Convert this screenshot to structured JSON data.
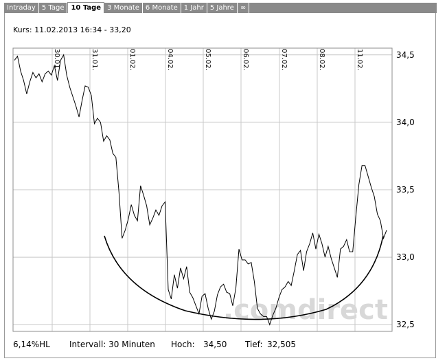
{
  "tabs": [
    {
      "label": "Intraday",
      "active": false
    },
    {
      "label": "5 Tage",
      "active": false
    },
    {
      "label": "10 Tage",
      "active": true
    },
    {
      "label": "3 Monate",
      "active": false
    },
    {
      "label": "6 Monate",
      "active": false
    },
    {
      "label": "1 Jahr",
      "active": false
    },
    {
      "label": "5 Jahre",
      "active": false
    },
    {
      "label": "∞",
      "active": false
    }
  ],
  "quote": {
    "text": "Kurs: 11.02.2013 16:34 - 33,20"
  },
  "footer": {
    "hl": "6,14%HL",
    "interval": "Intervall: 30 Minuten",
    "high_label": "Hoch:",
    "high_value": "34,50",
    "low_label": "Tief:",
    "low_value": "32,505"
  },
  "watermark": ".comdirect",
  "colors": {
    "line": "#000000",
    "grid": "#c8c8c8",
    "watermark": "#d8d8d8",
    "tabbar": "#8a8a8a"
  },
  "chart_data": {
    "type": "line",
    "title": "",
    "xlabel": "",
    "ylabel": "",
    "ylim": [
      32.45,
      34.55
    ],
    "y_ticks": [
      "34,5",
      "34,0",
      "33,5",
      "33,0",
      "32,5"
    ],
    "y_tick_values": [
      34.5,
      34.0,
      33.5,
      33.0,
      32.5
    ],
    "day_labels": [
      "30.01.",
      "31.01.",
      "01.02.",
      "04.02.",
      "05.02.",
      "06.02.",
      "07.02.",
      "08.02.",
      "11.02."
    ],
    "grid": true,
    "series": [
      {
        "values": [
          34.46,
          34.49,
          34.38,
          34.31,
          34.21,
          34.3,
          34.37,
          34.33,
          34.36,
          34.3,
          34.36,
          34.38,
          34.35,
          34.42,
          34.31,
          34.46,
          34.5,
          34.35,
          34.26,
          34.19,
          34.12,
          34.04,
          34.16,
          34.27,
          34.26,
          34.2,
          33.99,
          34.03,
          34.0,
          33.86,
          33.9,
          33.87,
          33.77,
          33.74,
          33.48,
          33.14,
          33.2,
          33.28,
          33.39,
          33.31,
          33.27,
          33.53,
          33.46,
          33.38,
          33.24,
          33.29,
          33.35,
          33.31,
          33.38,
          33.41,
          32.76,
          32.69,
          32.87,
          32.77,
          32.92,
          32.84,
          32.93,
          32.74,
          32.7,
          32.64,
          32.58,
          32.71,
          32.73,
          32.62,
          32.54,
          32.6,
          32.72,
          32.78,
          32.8,
          32.74,
          32.73,
          32.64,
          32.77,
          33.06,
          32.98,
          32.98,
          32.95,
          32.96,
          32.82,
          32.62,
          32.58,
          32.56,
          32.56,
          32.5,
          32.57,
          32.62,
          32.7,
          32.76,
          32.78,
          32.82,
          32.79,
          32.9,
          33.02,
          33.05,
          32.9,
          33.04,
          33.1,
          33.18,
          33.06,
          33.17,
          33.1,
          33.0,
          33.08,
          32.99,
          32.92,
          32.85,
          33.06,
          33.08,
          33.13,
          33.04,
          33.04,
          33.3,
          33.54,
          33.68,
          33.68,
          33.6,
          33.52,
          33.45,
          33.32,
          33.27,
          33.14,
          33.2
        ]
      }
    ]
  }
}
